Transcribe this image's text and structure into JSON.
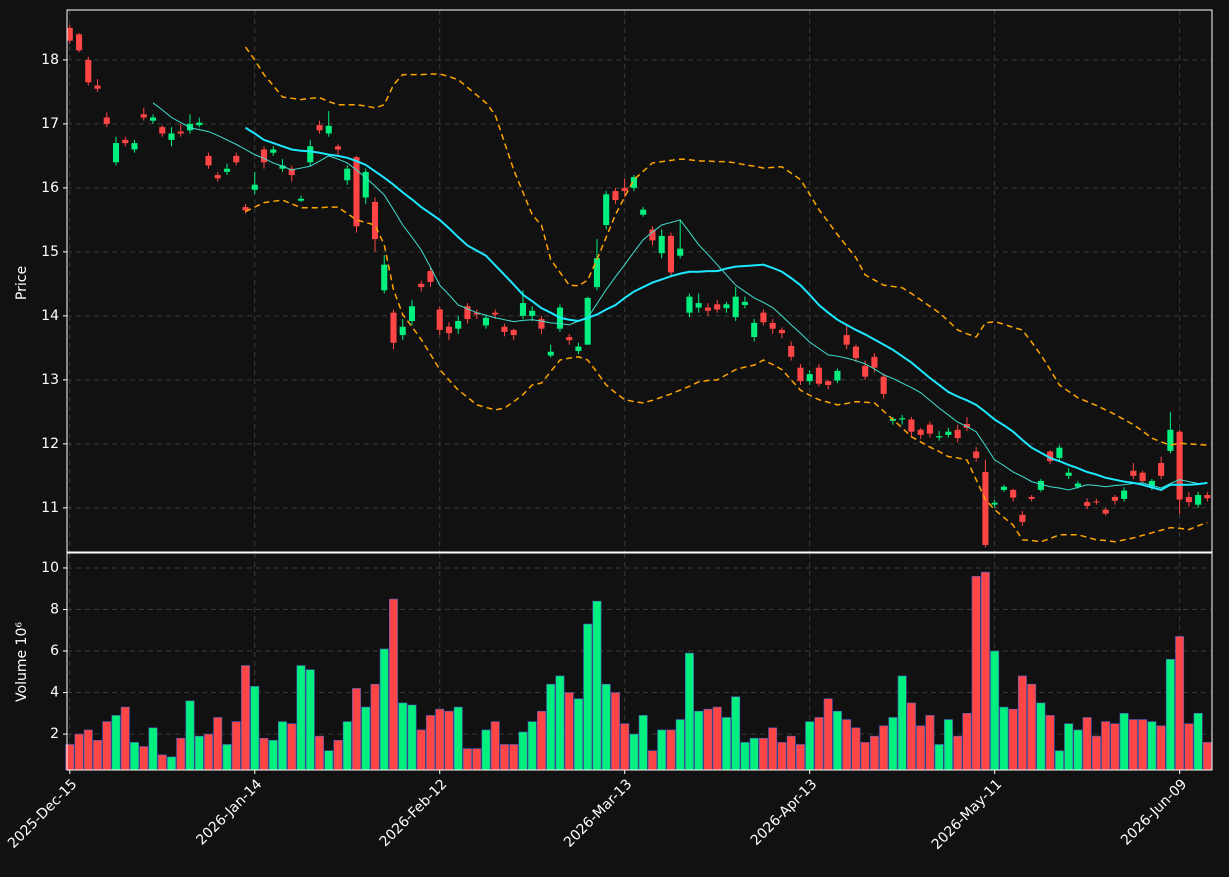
{
  "chart_data": {
    "type": "candlestick",
    "ylabel": "Price",
    "volume_ylabel": "Volume  10⁶",
    "categories": [
      "2025-Dec-15",
      null,
      null,
      null,
      null,
      null,
      null,
      null,
      null,
      null,
      null,
      null,
      null,
      null,
      null,
      null,
      null,
      null,
      null,
      null,
      "2026-Jan-14",
      null,
      null,
      null,
      null,
      null,
      null,
      null,
      null,
      null,
      null,
      null,
      null,
      null,
      null,
      null,
      null,
      null,
      null,
      null,
      "2026-Feb-12",
      null,
      null,
      null,
      null,
      null,
      null,
      null,
      null,
      null,
      null,
      null,
      null,
      null,
      null,
      null,
      null,
      null,
      null,
      null,
      "2026-Mar-13",
      null,
      null,
      null,
      null,
      null,
      null,
      null,
      null,
      null,
      null,
      null,
      null,
      null,
      null,
      null,
      null,
      null,
      null,
      null,
      "2026-Apr-13",
      null,
      null,
      null,
      null,
      null,
      null,
      null,
      null,
      null,
      null,
      null,
      null,
      null,
      null,
      null,
      null,
      null,
      null,
      null,
      "2026-May-11",
      null,
      null,
      null,
      null,
      null,
      null,
      null,
      null,
      null,
      null,
      null,
      null,
      null,
      null,
      null,
      null,
      null,
      null,
      null,
      "2026-Jun-09",
      null,
      null,
      null
    ],
    "open": [
      18.5,
      18.4,
      18.0,
      17.6,
      17.1,
      16.4,
      16.75,
      16.6,
      17.15,
      17.05,
      16.95,
      16.75,
      16.88,
      16.9,
      16.98,
      16.5,
      16.2,
      16.25,
      16.5,
      15.7,
      15.97,
      16.6,
      16.55,
      16.3,
      16.3,
      15.8,
      16.4,
      16.98,
      16.85,
      16.65,
      16.12,
      16.48,
      15.85,
      15.78,
      14.4,
      14.05,
      13.7,
      13.92,
      14.5,
      14.7,
      14.1,
      13.83,
      13.8,
      14.15,
      14.05,
      13.85,
      14.05,
      13.83,
      13.78,
      14.0,
      14.0,
      13.95,
      13.38,
      13.8,
      13.67,
      13.45,
      13.55,
      14.45,
      15.42,
      15.95,
      16.0,
      16.0,
      15.58,
      15.35,
      14.98,
      15.25,
      14.94,
      14.05,
      14.13,
      14.13,
      14.18,
      14.12,
      13.98,
      14.17,
      13.67,
      14.05,
      13.89,
      13.78,
      13.53,
      13.19,
      12.98,
      13.19,
      12.98,
      12.99,
      13.7,
      13.52,
      13.22,
      13.36,
      13.05,
      12.36,
      12.38,
      12.38,
      12.22,
      12.3,
      12.1,
      12.14,
      12.22,
      12.31,
      11.88,
      11.56,
      11.05,
      11.28,
      11.28,
      10.89,
      11.17,
      11.28,
      11.88,
      11.78,
      11.5,
      11.33,
      11.09,
      11.1,
      10.97,
      11.17,
      11.14,
      11.58,
      11.55,
      11.33,
      11.7,
      11.89,
      12.19,
      11.17,
      11.05,
      11.2
    ],
    "high": [
      18.55,
      18.42,
      18.05,
      17.7,
      17.18,
      16.8,
      16.8,
      16.75,
      17.25,
      17.15,
      16.98,
      16.95,
      17.0,
      17.15,
      17.1,
      16.55,
      16.25,
      16.38,
      16.55,
      15.75,
      16.25,
      16.65,
      16.65,
      16.45,
      16.35,
      15.88,
      16.75,
      17.05,
      17.2,
      16.68,
      16.35,
      16.5,
      16.3,
      15.85,
      14.95,
      14.1,
      13.95,
      14.25,
      14.55,
      14.75,
      14.15,
      13.9,
      14.0,
      14.2,
      14.1,
      14.0,
      14.1,
      13.88,
      13.8,
      14.4,
      14.15,
      14.0,
      13.55,
      14.18,
      13.72,
      13.58,
      14.3,
      15.2,
      15.95,
      16.0,
      16.15,
      16.2,
      15.7,
      15.4,
      15.35,
      15.3,
      15.5,
      14.35,
      14.35,
      14.2,
      14.25,
      14.22,
      14.45,
      14.3,
      13.95,
      14.1,
      13.95,
      13.82,
      13.6,
      13.25,
      13.15,
      13.25,
      13.0,
      13.18,
      13.85,
      13.55,
      13.3,
      13.42,
      13.1,
      12.42,
      12.45,
      12.42,
      12.25,
      12.35,
      12.2,
      12.25,
      12.3,
      12.42,
      11.95,
      11.75,
      11.12,
      11.36,
      11.3,
      10.95,
      11.2,
      11.45,
      11.9,
      11.98,
      11.62,
      11.42,
      11.15,
      11.14,
      11.0,
      11.2,
      11.32,
      11.7,
      11.58,
      11.45,
      11.8,
      12.5,
      12.22,
      11.25,
      11.25,
      11.25
    ],
    "low": [
      18.25,
      18.12,
      17.6,
      17.5,
      16.95,
      16.35,
      16.65,
      16.55,
      17.05,
      17.0,
      16.8,
      16.65,
      16.8,
      16.85,
      16.95,
      16.3,
      16.1,
      16.2,
      16.35,
      15.6,
      15.9,
      16.3,
      16.5,
      16.25,
      16.1,
      15.78,
      16.35,
      16.85,
      16.8,
      16.5,
      16.05,
      15.3,
      15.75,
      15.0,
      14.35,
      13.48,
      13.62,
      13.85,
      14.38,
      14.45,
      13.7,
      13.62,
      13.72,
      13.88,
      13.95,
      13.8,
      13.95,
      13.68,
      13.62,
      13.95,
      13.92,
      13.72,
      13.35,
      13.75,
      13.55,
      13.4,
      13.55,
      14.4,
      15.35,
      15.75,
      15.85,
      15.95,
      15.55,
      15.1,
      14.9,
      14.6,
      14.9,
      13.98,
      14.05,
      14.0,
      14.05,
      14.05,
      13.92,
      14.12,
      13.6,
      13.85,
      13.72,
      13.65,
      13.3,
      12.92,
      12.92,
      12.9,
      12.85,
      12.95,
      13.48,
      13.28,
      13.0,
      13.12,
      12.7,
      12.3,
      12.3,
      12.12,
      12.08,
      12.1,
      12.05,
      12.1,
      12.02,
      12.2,
      11.72,
      10.38,
      11.0,
      11.25,
      11.1,
      10.72,
      11.1,
      11.25,
      11.68,
      11.72,
      11.45,
      11.3,
      10.98,
      11.05,
      10.88,
      11.05,
      11.1,
      11.45,
      11.38,
      11.28,
      11.45,
      11.85,
      10.9,
      11.02,
      11.0,
      11.1
    ],
    "close": [
      18.3,
      18.15,
      17.65,
      17.55,
      17.0,
      16.7,
      16.7,
      16.7,
      17.1,
      17.1,
      16.85,
      16.85,
      16.85,
      17.0,
      17.02,
      16.35,
      16.15,
      16.3,
      16.4,
      15.65,
      16.05,
      16.4,
      16.6,
      16.35,
      16.2,
      15.83,
      16.65,
      16.9,
      16.97,
      16.6,
      16.3,
      15.4,
      16.25,
      15.2,
      14.8,
      13.58,
      13.83,
      14.15,
      14.45,
      14.53,
      13.78,
      13.73,
      13.92,
      13.95,
      14.02,
      13.97,
      14.02,
      13.75,
      13.7,
      14.2,
      14.08,
      13.8,
      13.44,
      14.13,
      13.62,
      13.52,
      14.28,
      14.9,
      15.9,
      15.81,
      15.95,
      16.17,
      15.66,
      15.18,
      15.25,
      14.68,
      15.05,
      14.3,
      14.2,
      14.08,
      14.1,
      14.18,
      14.3,
      14.22,
      13.89,
      13.9,
      13.8,
      13.73,
      13.36,
      12.98,
      13.09,
      12.94,
      12.92,
      13.14,
      13.55,
      13.34,
      13.05,
      13.19,
      12.78,
      12.39,
      12.4,
      12.19,
      12.14,
      12.16,
      12.12,
      12.19,
      12.09,
      12.25,
      11.78,
      10.42,
      11.08,
      11.33,
      11.16,
      10.78,
      11.14,
      11.42,
      11.73,
      11.94,
      11.55,
      11.38,
      11.03,
      11.09,
      10.91,
      11.11,
      11.27,
      11.5,
      11.42,
      11.42,
      11.5,
      12.22,
      11.13,
      11.09,
      11.2,
      11.15
    ],
    "volume": [
      1.5,
      2.0,
      2.2,
      1.7,
      2.6,
      2.9,
      3.3,
      1.6,
      1.4,
      2.3,
      1.0,
      0.9,
      1.8,
      3.6,
      1.9,
      2.0,
      2.8,
      1.5,
      2.6,
      5.3,
      4.3,
      1.8,
      1.7,
      2.6,
      2.5,
      5.3,
      5.1,
      1.9,
      1.2,
      1.7,
      2.6,
      4.2,
      3.3,
      4.4,
      6.1,
      8.5,
      3.5,
      3.4,
      2.2,
      2.9,
      3.2,
      3.1,
      3.3,
      1.3,
      1.3,
      2.2,
      2.6,
      1.5,
      1.5,
      2.1,
      2.6,
      3.1,
      4.4,
      4.8,
      4.0,
      3.7,
      7.3,
      8.4,
      4.4,
      4.0,
      2.5,
      2.0,
      2.9,
      1.2,
      2.2,
      2.2,
      2.7,
      5.9,
      3.1,
      3.2,
      3.3,
      2.8,
      3.8,
      1.6,
      1.8,
      1.8,
      2.3,
      1.6,
      1.9,
      1.5,
      2.6,
      2.8,
      3.7,
      3.1,
      2.7,
      2.3,
      1.6,
      1.9,
      2.4,
      2.8,
      4.8,
      3.5,
      2.4,
      2.9,
      1.5,
      2.7,
      1.9,
      3.0,
      9.6,
      9.8,
      6.0,
      3.3,
      3.2,
      4.8,
      4.4,
      3.5,
      2.9,
      1.2,
      2.5,
      2.2,
      2.8,
      1.9,
      2.6,
      2.5,
      3.0,
      2.7,
      2.7,
      2.6,
      2.4,
      5.6,
      6.7,
      2.5,
      3.0,
      1.6
    ],
    "up_color": "#00f080",
    "down_color": "#ff4545",
    "lines": [
      {
        "color": "#40e0d0",
        "style": "thin",
        "values": [
          null,
          null,
          null,
          null,
          null,
          null,
          null,
          null,
          null,
          17.33,
          17.22,
          17.1,
          17.02,
          16.94,
          16.91,
          16.88,
          16.82,
          16.75,
          16.68,
          16.6,
          16.52,
          16.46,
          16.39,
          16.34,
          16.28,
          16.31,
          16.34,
          16.42,
          16.5,
          16.45,
          16.39,
          16.28,
          16.16,
          16.03,
          15.89,
          15.66,
          15.42,
          15.23,
          15.03,
          14.76,
          14.48,
          14.33,
          14.17,
          14.11,
          14.05,
          14.01,
          13.97,
          13.94,
          13.91,
          13.93,
          13.94,
          13.92,
          13.89,
          13.88,
          13.86,
          13.92,
          13.97,
          14.19,
          14.41,
          14.61,
          14.8,
          15.0,
          15.19,
          15.31,
          15.42,
          15.46,
          15.5,
          15.31,
          15.11,
          14.96,
          14.8,
          14.64,
          14.48,
          14.38,
          14.28,
          14.21,
          14.13,
          14.0,
          13.86,
          13.73,
          13.59,
          13.49,
          13.39,
          13.37,
          13.34,
          13.3,
          13.25,
          13.17,
          13.08,
          13.02,
          12.95,
          12.88,
          12.8,
          12.68,
          12.56,
          12.45,
          12.34,
          12.27,
          12.19,
          11.97,
          11.75,
          11.66,
          11.56,
          11.49,
          11.41,
          11.37,
          11.33,
          11.31,
          11.28,
          11.32,
          11.36,
          11.35,
          11.33,
          11.35,
          11.36,
          11.38,
          11.39,
          11.35,
          11.31,
          11.38,
          11.44,
          11.41,
          11.38,
          11.38
        ]
      },
      {
        "color": "#1ee8ff",
        "style": "thick",
        "values": [
          null,
          null,
          null,
          null,
          null,
          null,
          null,
          null,
          null,
          null,
          null,
          null,
          null,
          null,
          null,
          null,
          null,
          null,
          null,
          16.94,
          16.85,
          16.75,
          16.7,
          16.65,
          16.6,
          16.58,
          16.57,
          16.55,
          16.52,
          16.5,
          16.47,
          16.42,
          16.36,
          16.26,
          16.16,
          16.05,
          15.93,
          15.82,
          15.7,
          15.6,
          15.5,
          15.37,
          15.23,
          15.1,
          15.02,
          14.94,
          14.79,
          14.64,
          14.49,
          14.33,
          14.23,
          14.12,
          14.05,
          13.97,
          13.94,
          13.92,
          13.97,
          14.02,
          14.1,
          14.17,
          14.28,
          14.38,
          14.45,
          14.52,
          14.57,
          14.62,
          14.66,
          14.69,
          14.69,
          14.7,
          14.7,
          14.74,
          14.77,
          14.78,
          14.79,
          14.8,
          14.75,
          14.69,
          14.59,
          14.48,
          14.33,
          14.17,
          14.05,
          13.94,
          13.86,
          13.78,
          13.71,
          13.63,
          13.55,
          13.47,
          13.37,
          13.27,
          13.15,
          13.03,
          12.92,
          12.81,
          12.74,
          12.68,
          12.61,
          12.5,
          12.38,
          12.29,
          12.19,
          12.06,
          11.94,
          11.86,
          11.78,
          11.73,
          11.67,
          11.62,
          11.56,
          11.52,
          11.47,
          11.44,
          11.41,
          11.39,
          11.36,
          11.32,
          11.28,
          11.36,
          11.36,
          11.36,
          11.37,
          11.39
        ]
      },
      {
        "color": "#ffa500",
        "style": "dashed",
        "values": [
          null,
          null,
          null,
          null,
          null,
          null,
          null,
          null,
          null,
          null,
          null,
          null,
          null,
          null,
          null,
          null,
          null,
          null,
          null,
          18.2,
          18.0,
          17.77,
          17.6,
          17.42,
          17.4,
          17.38,
          17.4,
          17.41,
          17.35,
          17.3,
          17.3,
          17.3,
          17.28,
          17.25,
          17.3,
          17.61,
          17.77,
          17.77,
          17.77,
          17.78,
          17.78,
          17.74,
          17.69,
          17.57,
          17.45,
          17.33,
          17.14,
          16.71,
          16.28,
          15.93,
          15.58,
          15.42,
          14.88,
          14.68,
          14.48,
          14.47,
          14.56,
          14.88,
          15.23,
          15.58,
          15.86,
          16.13,
          16.26,
          16.39,
          16.41,
          16.43,
          16.45,
          16.44,
          16.42,
          16.42,
          16.41,
          16.41,
          16.39,
          16.36,
          16.34,
          16.31,
          16.32,
          16.33,
          16.23,
          16.13,
          15.9,
          15.66,
          15.47,
          15.27,
          15.09,
          14.91,
          14.64,
          14.56,
          14.48,
          14.46,
          14.44,
          14.35,
          14.25,
          14.15,
          14.05,
          13.92,
          13.78,
          13.72,
          13.67,
          13.89,
          13.91,
          13.87,
          13.82,
          13.78,
          13.59,
          13.39,
          13.16,
          12.92,
          12.82,
          12.72,
          12.66,
          12.6,
          12.53,
          12.46,
          12.38,
          12.3,
          12.2,
          12.09,
          12.03,
          11.98,
          12.01,
          12.0,
          11.99,
          11.98
        ]
      },
      {
        "color": "#ffa500",
        "style": "dashed",
        "values": [
          null,
          null,
          null,
          null,
          null,
          null,
          null,
          null,
          null,
          null,
          null,
          null,
          null,
          null,
          null,
          null,
          null,
          null,
          null,
          15.63,
          15.7,
          15.77,
          15.79,
          15.81,
          15.75,
          15.69,
          15.69,
          15.69,
          15.7,
          15.7,
          15.6,
          15.5,
          15.46,
          15.42,
          15.11,
          14.41,
          14.02,
          13.83,
          13.63,
          13.4,
          13.16,
          13.0,
          12.84,
          12.73,
          12.61,
          12.57,
          12.53,
          12.56,
          12.66,
          12.77,
          12.92,
          12.95,
          13.13,
          13.31,
          13.34,
          13.36,
          13.31,
          13.12,
          12.92,
          12.8,
          12.69,
          12.66,
          12.64,
          12.68,
          12.73,
          12.78,
          12.84,
          12.9,
          12.97,
          12.99,
          13.0,
          13.08,
          13.16,
          13.2,
          13.23,
          13.31,
          13.24,
          13.16,
          13.0,
          12.84,
          12.76,
          12.69,
          12.65,
          12.61,
          12.63,
          12.66,
          12.65,
          12.64,
          12.51,
          12.38,
          12.25,
          12.11,
          12.03,
          11.95,
          11.88,
          11.8,
          11.78,
          11.75,
          11.44,
          11.13,
          10.97,
          10.85,
          10.73,
          10.5,
          10.49,
          10.47,
          10.52,
          10.58,
          10.58,
          10.58,
          10.54,
          10.5,
          10.49,
          10.47,
          10.5,
          10.53,
          10.57,
          10.61,
          10.65,
          10.69,
          10.68,
          10.66,
          10.72,
          10.77
        ]
      }
    ],
    "ylim": [
      10.31,
      18.78
    ],
    "yticks": [
      11,
      12,
      13,
      14,
      15,
      16,
      17,
      18
    ],
    "volume_ylim": [
      0.27,
      10.72
    ],
    "volume_yticks": [
      2,
      4,
      6,
      8,
      10
    ],
    "grid": true
  }
}
